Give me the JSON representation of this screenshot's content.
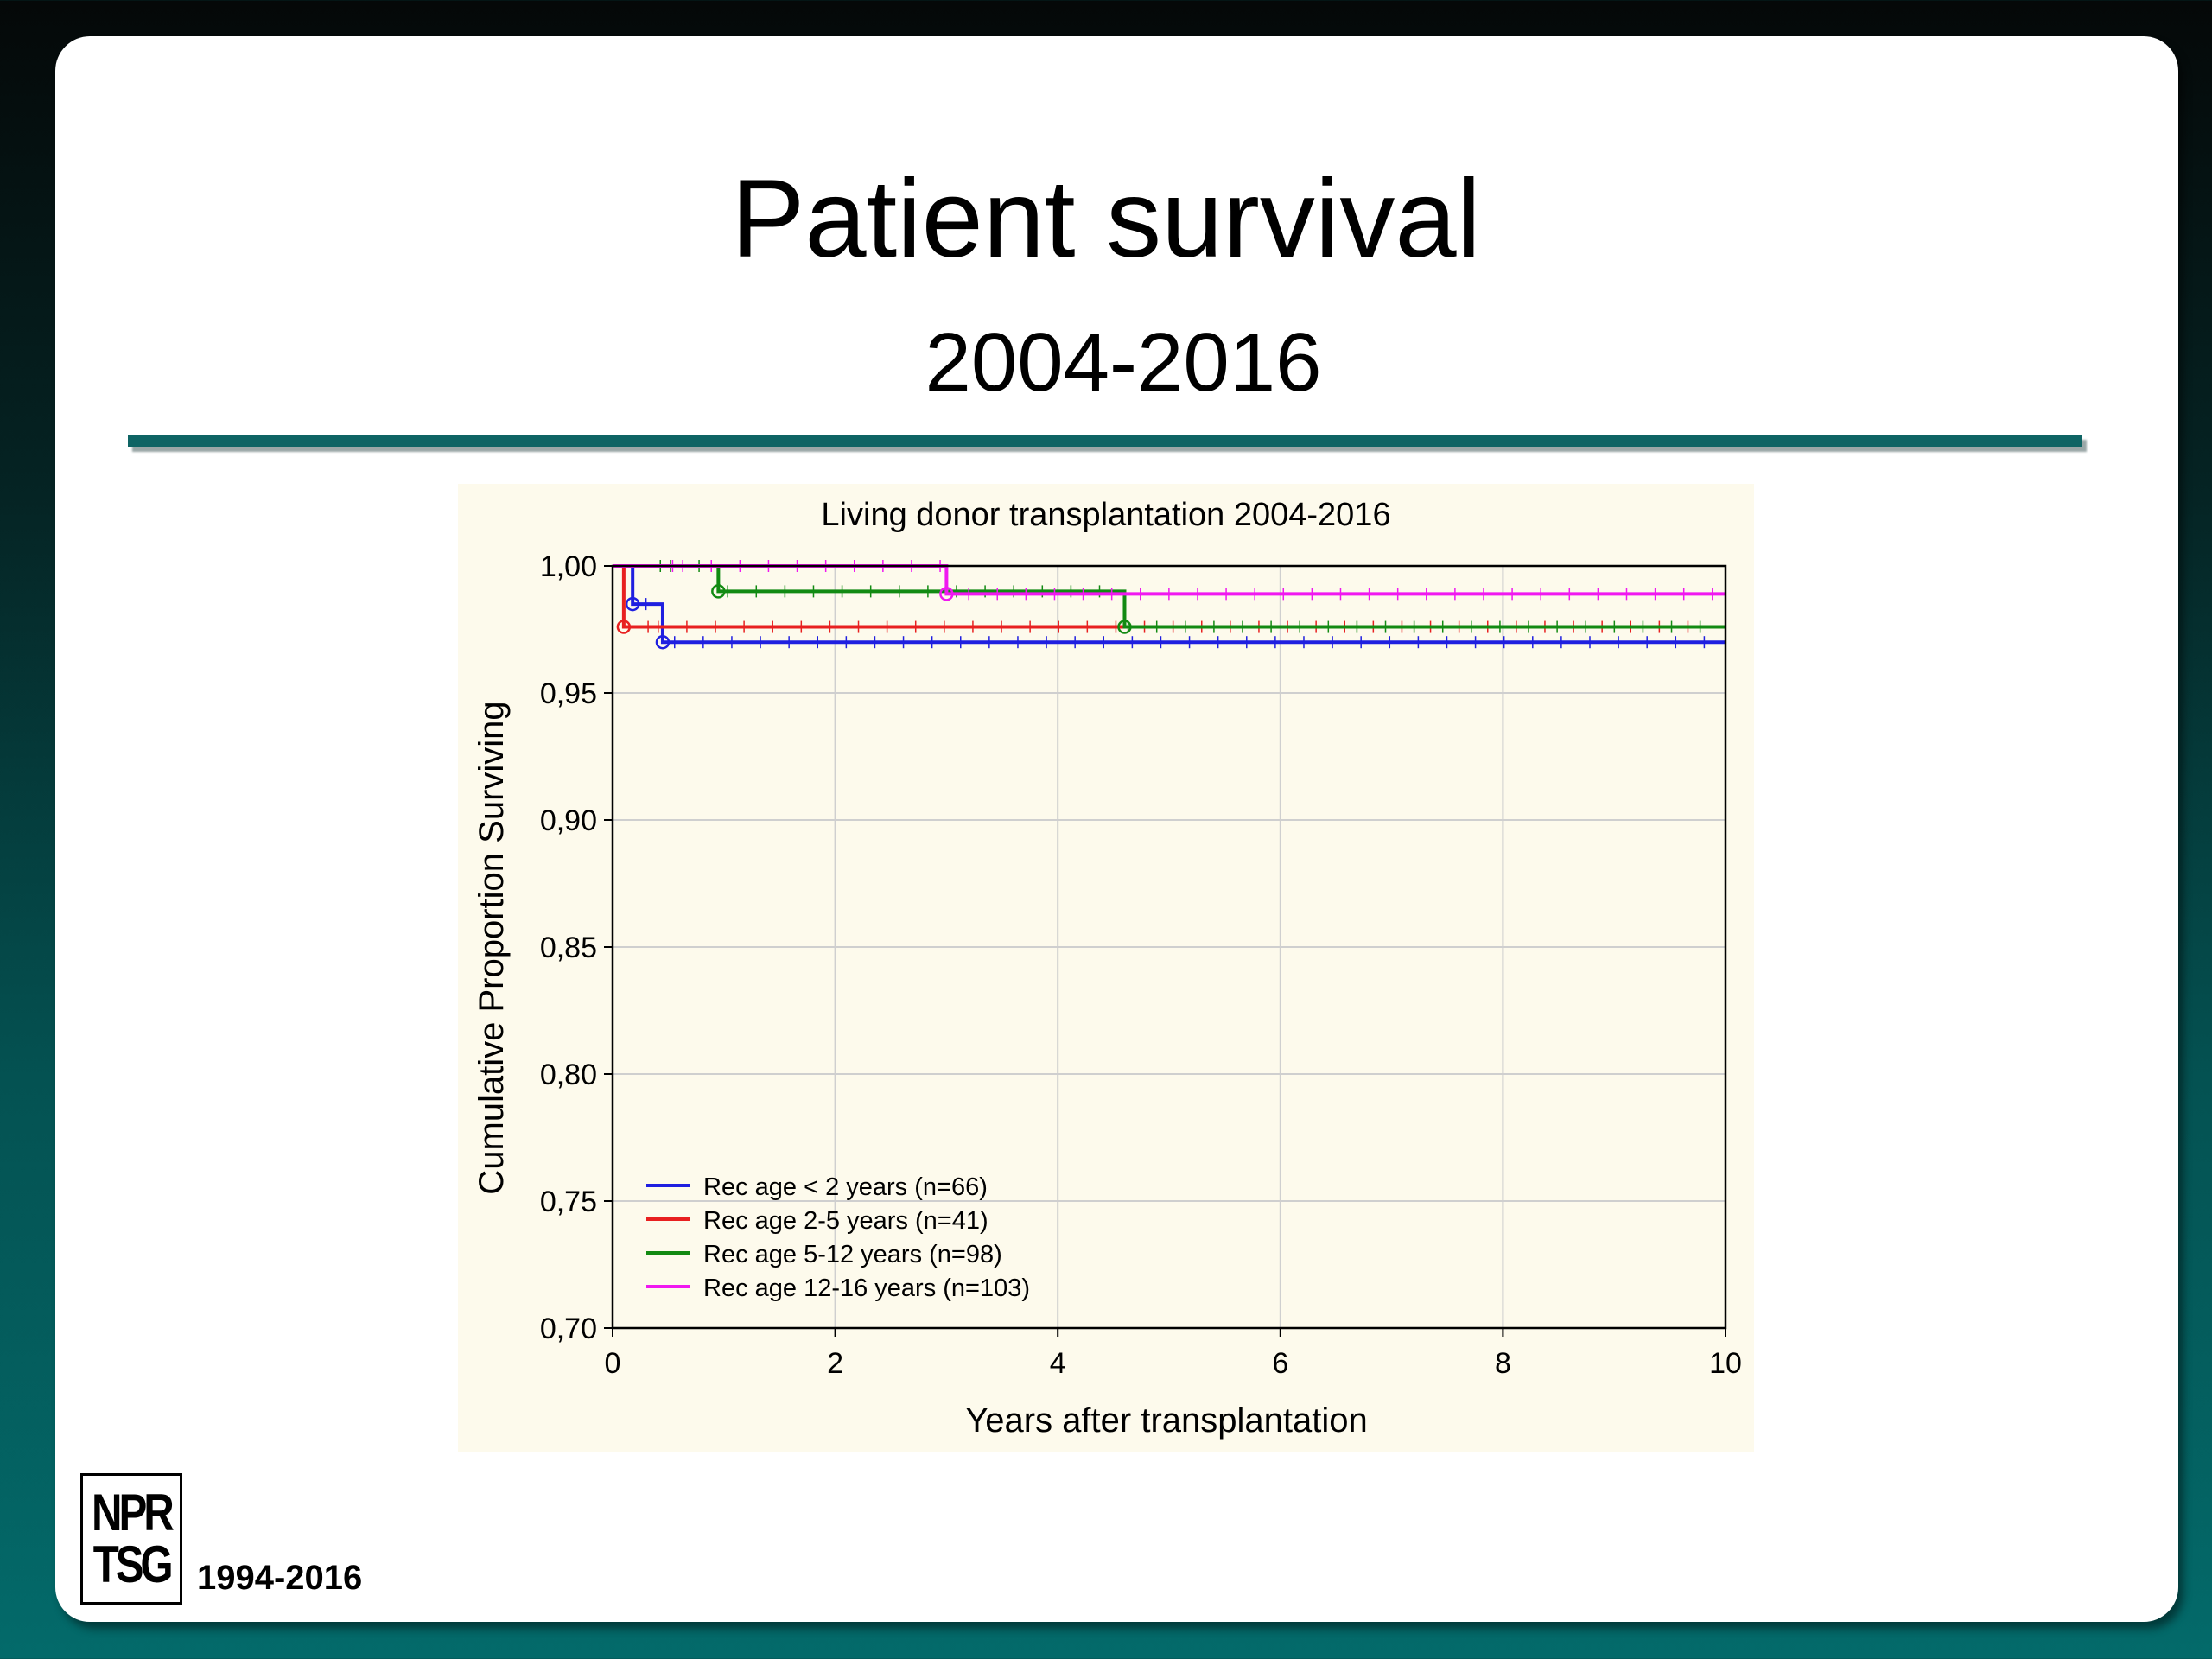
{
  "slide": {
    "title": "Patient survival",
    "subtitle": "2004-2016",
    "logo_text": "NPR TSG",
    "logo_lines": [
      "NPR",
      "TSG"
    ],
    "footer_years": "1994-2016",
    "accent_color": "#0e6464"
  },
  "chart_data": {
    "type": "line",
    "title": "Living donor transplantation 2004-2016",
    "xlabel": "Years after transplantation",
    "ylabel": "Cumulative Proportion Surviving",
    "xlim": [
      0,
      10
    ],
    "ylim": [
      0.7,
      1.0
    ],
    "xticks": [
      "0",
      "2",
      "4",
      "6",
      "8",
      "10"
    ],
    "yticks": [
      "0,70",
      "0,75",
      "0,80",
      "0,85",
      "0,90",
      "0,95",
      "1,00"
    ],
    "grid": true,
    "legend_position": "bottom-left",
    "series": [
      {
        "name": "Rec age < 2 years (n=66)",
        "color": "#1f1fe0",
        "steps": [
          [
            0,
            1.0
          ],
          [
            0.18,
            0.985
          ],
          [
            0.45,
            0.97
          ],
          [
            10,
            0.97
          ]
        ],
        "events": [
          [
            0.18,
            0.985
          ],
          [
            0.45,
            0.97
          ]
        ]
      },
      {
        "name": "Rec age 2-5 years (n=41)",
        "color": "#e82020",
        "steps": [
          [
            0,
            1.0
          ],
          [
            0.1,
            0.976
          ],
          [
            10,
            0.976
          ]
        ],
        "events": [
          [
            0.1,
            0.976
          ]
        ]
      },
      {
        "name": "Rec age 5-12 years (n=98)",
        "color": "#128a12",
        "steps": [
          [
            0,
            1.0
          ],
          [
            0.95,
            0.99
          ],
          [
            4.6,
            0.976
          ],
          [
            10,
            0.976
          ]
        ],
        "events": [
          [
            0.95,
            0.99
          ],
          [
            4.6,
            0.976
          ]
        ]
      },
      {
        "name": "Rec age 12-16 years (n=103)",
        "color": "#f018f0",
        "steps": [
          [
            0,
            1.0
          ],
          [
            3.0,
            0.989
          ],
          [
            10,
            0.989
          ]
        ],
        "events": [
          [
            3.0,
            0.989
          ]
        ]
      }
    ]
  }
}
